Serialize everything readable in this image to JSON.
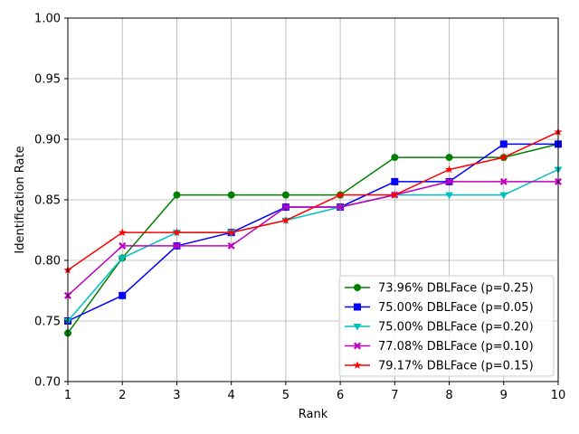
{
  "chart_data": {
    "type": "line",
    "xlabel": "Rank",
    "ylabel": "Identification Rate",
    "x": [
      1,
      2,
      3,
      4,
      5,
      6,
      7,
      8,
      9,
      10
    ],
    "xlim": [
      1,
      10
    ],
    "ylim": [
      0.7,
      1.0
    ],
    "xticks": [
      "1",
      "2",
      "3",
      "4",
      "5",
      "6",
      "7",
      "8",
      "9",
      "10"
    ],
    "yticks": [
      "0.70",
      "0.75",
      "0.80",
      "0.85",
      "0.90",
      "0.95",
      "1.00"
    ],
    "grid": true,
    "legend_position": "lower-right",
    "series": [
      {
        "name": "73.96% DBLFace (p=0.25)",
        "color": "#008000",
        "marker": "circle",
        "values": [
          0.74,
          0.802,
          0.854,
          0.854,
          0.854,
          0.854,
          0.885,
          0.885,
          0.885,
          0.896
        ]
      },
      {
        "name": "75.00% DBLFace (p=0.05)",
        "color": "#0000ff",
        "marker": "square",
        "values": [
          0.75,
          0.771,
          0.812,
          0.823,
          0.844,
          0.844,
          0.865,
          0.865,
          0.896,
          0.896
        ]
      },
      {
        "name": "75.00% DBLFace (p=0.20)",
        "color": "#00bfbf",
        "marker": "triangle-down",
        "values": [
          0.75,
          0.802,
          0.823,
          0.823,
          0.833,
          0.844,
          0.854,
          0.854,
          0.854,
          0.875
        ]
      },
      {
        "name": "77.08% DBLFace (p=0.10)",
        "color": "#bf00bf",
        "marker": "x-filled",
        "values": [
          0.771,
          0.812,
          0.812,
          0.812,
          0.844,
          0.844,
          0.854,
          0.865,
          0.865,
          0.865
        ]
      },
      {
        "name": "79.17% DBLFace (p=0.15)",
        "color": "#ff0000",
        "marker": "star",
        "values": [
          0.792,
          0.823,
          0.823,
          0.823,
          0.833,
          0.854,
          0.854,
          0.875,
          0.885,
          0.906
        ]
      }
    ]
  }
}
